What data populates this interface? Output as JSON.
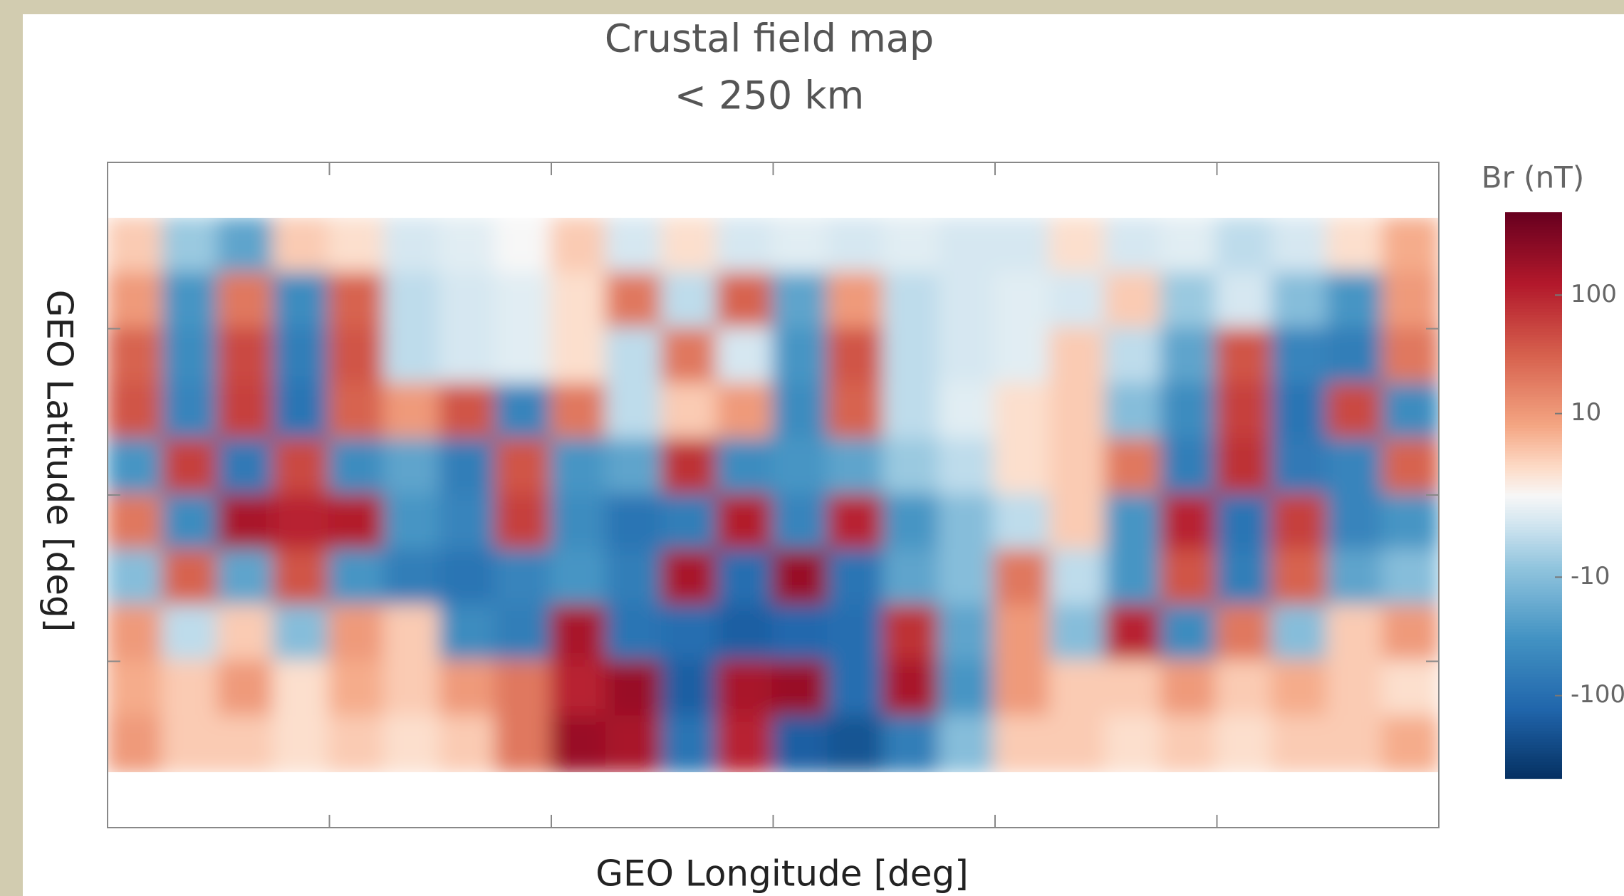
{
  "chart_data": {
    "type": "heatmap",
    "title": "Crustal field map",
    "subtitle": "< 250 km",
    "x_label": "GEO Longitude [deg]",
    "y_label": "GEO Latitude  [deg]",
    "xlim": [
      -180,
      180
    ],
    "xticks": [
      -120,
      -60,
      0,
      60,
      120
    ],
    "ylim": [
      -90,
      90
    ],
    "yticks": [
      -45,
      0,
      45
    ],
    "x": [
      -172.5,
      -157.5,
      -142.5,
      -127.5,
      -112.5,
      -97.5,
      -82.5,
      -67.5,
      -52.5,
      -37.5,
      -22.5,
      -7.5,
      7.5,
      22.5,
      37.5,
      52.5,
      67.5,
      82.5,
      97.5,
      112.5,
      127.5,
      142.5,
      157.5,
      172.5
    ],
    "y": [
      67.5,
      52.5,
      37.5,
      22.5,
      7.5,
      -7.5,
      -22.5,
      -37.5,
      -52.5,
      -67.5
    ],
    "values": [
      [
        5,
        -8,
        -20,
        5,
        3,
        -3,
        -2,
        0,
        5,
        -3,
        3,
        -3,
        -2,
        -3,
        -2,
        -3,
        -3,
        3,
        -3,
        -2,
        -5,
        -3,
        3,
        8
      ],
      [
        10,
        -30,
        20,
        -40,
        30,
        -5,
        -3,
        -2,
        3,
        20,
        -5,
        30,
        -20,
        10,
        -5,
        -3,
        -2,
        -3,
        5,
        -8,
        -3,
        -10,
        -30,
        10
      ],
      [
        30,
        -40,
        50,
        -60,
        40,
        -5,
        -3,
        -2,
        3,
        -5,
        20,
        -3,
        -30,
        40,
        -5,
        -3,
        -2,
        5,
        -5,
        -20,
        40,
        -50,
        -60,
        20
      ],
      [
        40,
        -50,
        60,
        -80,
        30,
        10,
        40,
        -50,
        20,
        -5,
        5,
        10,
        -40,
        30,
        -5,
        -2,
        3,
        5,
        -10,
        -40,
        60,
        -80,
        50,
        -40
      ],
      [
        -30,
        60,
        -70,
        50,
        -40,
        -20,
        -60,
        40,
        -30,
        -20,
        80,
        -40,
        -30,
        -20,
        -8,
        -5,
        3,
        5,
        20,
        -60,
        80,
        -70,
        -50,
        30
      ],
      [
        20,
        -40,
        150,
        100,
        120,
        -30,
        -50,
        60,
        -40,
        -80,
        -60,
        120,
        -50,
        100,
        -30,
        -10,
        -5,
        5,
        -30,
        100,
        -80,
        60,
        -50,
        -30
      ],
      [
        -10,
        30,
        -20,
        40,
        -30,
        -60,
        -80,
        -50,
        -30,
        -60,
        150,
        -100,
        200,
        -80,
        -20,
        -10,
        20,
        -5,
        -30,
        40,
        -60,
        30,
        -20,
        -10
      ],
      [
        10,
        -5,
        5,
        -10,
        10,
        5,
        -40,
        -60,
        150,
        -80,
        -100,
        -150,
        -120,
        -100,
        80,
        -20,
        10,
        -10,
        100,
        -40,
        20,
        -10,
        5,
        10
      ],
      [
        8,
        5,
        10,
        3,
        8,
        5,
        10,
        20,
        100,
        200,
        -150,
        150,
        200,
        -100,
        150,
        -30,
        10,
        5,
        5,
        10,
        5,
        8,
        5,
        3
      ],
      [
        10,
        5,
        5,
        3,
        5,
        3,
        5,
        20,
        200,
        150,
        -80,
        100,
        -150,
        -200,
        -60,
        -10,
        5,
        5,
        3,
        5,
        3,
        5,
        5,
        8
      ]
    ],
    "colorbar_label": "Br (nT)",
    "color_scale": "symlog",
    "linthresh": 10,
    "clim": [
      -500,
      500
    ],
    "cticks": [
      -100,
      -10,
      10,
      100
    ],
    "colormap": "RdBu_r"
  }
}
